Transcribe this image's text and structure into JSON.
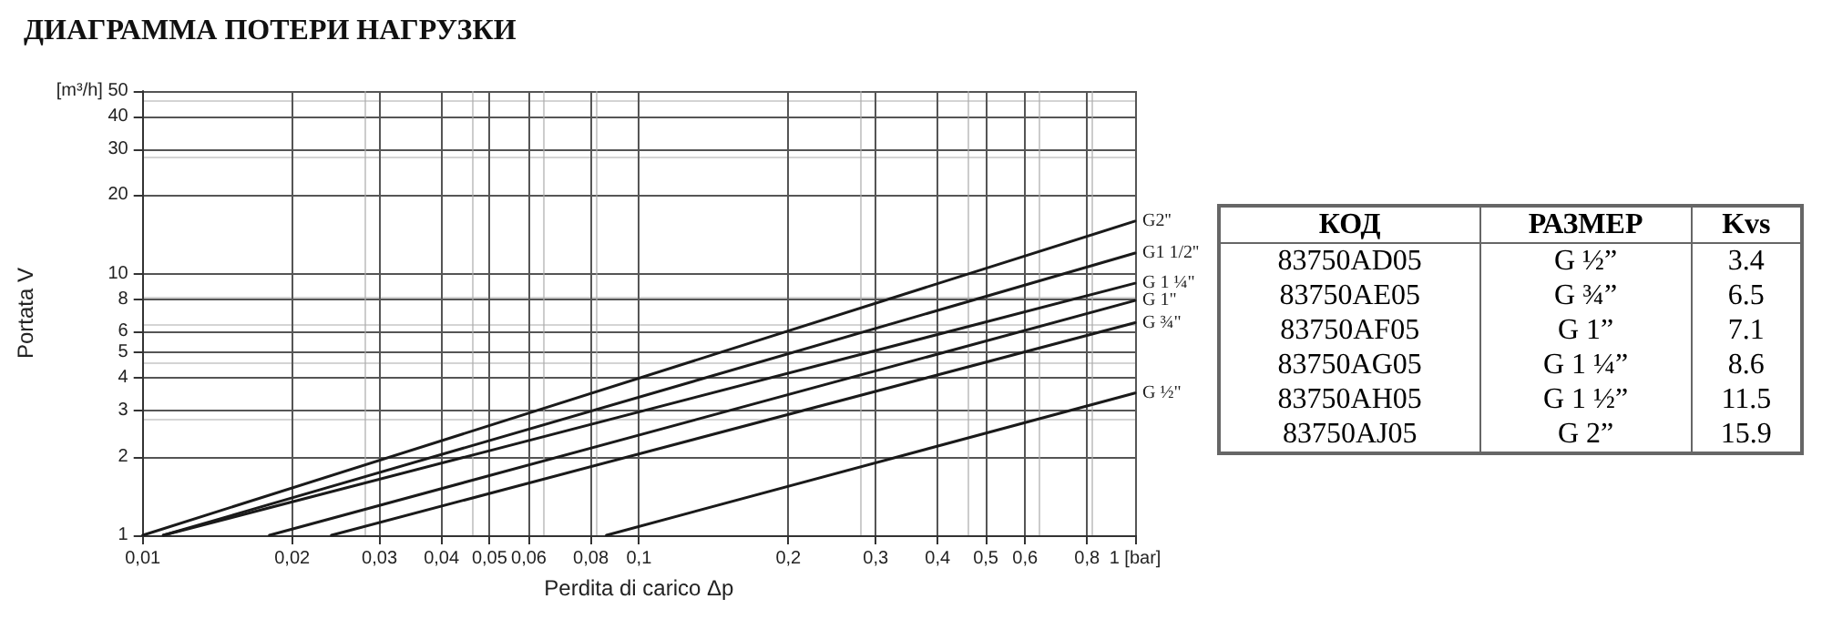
{
  "chart_data": [
    {
      "type": "line",
      "title": "ДИАГРАММА ПОТЕРИ НАГРУЗКИ",
      "xlabel": "Perdita di carico Δp",
      "ylabel": "Portata V",
      "log": "xy",
      "grid": true,
      "legend": false,
      "marker": "none",
      "line_style": "solid",
      "xlim": [
        0.01,
        1
      ],
      "ylim": [
        1,
        50
      ],
      "xticks": [
        {
          "value": 0.01,
          "label": "0,01"
        },
        {
          "value": 0.02,
          "label": "0,02"
        },
        {
          "value": 0.03,
          "label": "0,03"
        },
        {
          "value": 0.04,
          "label": "0,04"
        },
        {
          "value": 0.05,
          "label": "0,05"
        },
        {
          "value": 0.06,
          "label": "0,06"
        },
        {
          "value": 0.08,
          "label": "0,08"
        },
        {
          "value": 0.1,
          "label": "0,1"
        },
        {
          "value": 0.2,
          "label": "0,2"
        },
        {
          "value": 0.3,
          "label": "0,3"
        },
        {
          "value": 0.4,
          "label": "0,4"
        },
        {
          "value": 0.5,
          "label": "0,5"
        },
        {
          "value": 0.6,
          "label": "0,6"
        },
        {
          "value": 0.8,
          "label": "0,8"
        },
        {
          "value": 1,
          "label": "1 [bar]"
        }
      ],
      "yticks": [
        1,
        2,
        3,
        4,
        5,
        6,
        8,
        10,
        20,
        30,
        40,
        {
          "value": 50,
          "label": "[m³/h] 50"
        }
      ],
      "series": [
        {
          "name": "G2''",
          "color": "#1a1a1a",
          "x": [
            0.01,
            1
          ],
          "values": [
            1,
            15.9
          ]
        },
        {
          "name": "G1 1/2''",
          "color": "#1a1a1a",
          "x": [
            0.011,
            1
          ],
          "values": [
            1,
            12
          ]
        },
        {
          "name": "G 1 ¼\"",
          "color": "#1a1a1a",
          "x": [
            0.011,
            1
          ],
          "values": [
            1,
            9.2
          ]
        },
        {
          "name": "G 1\"",
          "color": "#1a1a1a",
          "x": [
            0.018,
            1
          ],
          "values": [
            1,
            7.9
          ]
        },
        {
          "name": "G ¾\"",
          "color": "#1a1a1a",
          "x": [
            0.024,
            1
          ],
          "values": [
            1,
            6.5
          ]
        },
        {
          "name": "G ½\"",
          "color": "#1a1a1a",
          "x": [
            0.086,
            1
          ],
          "values": [
            1,
            3.5
          ]
        }
      ]
    },
    {
      "type": "other",
      "annotations": [
        "КОД",
        "РАЗМЕР",
        "Kvs",
        "83750AD05",
        "G ½”",
        "3.4",
        "83750AE05",
        "G ¾”",
        "6.5",
        "83750AF05",
        "G 1”",
        "7.1",
        "83750AG05",
        "G 1 ¼”",
        "8.6",
        "83750AH05",
        "G 1 ½”",
        "11.5",
        "83750AJ05",
        "G 2”",
        "15.9"
      ]
    }
  ]
}
